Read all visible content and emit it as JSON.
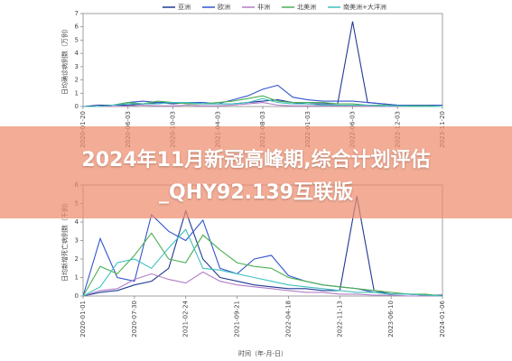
{
  "banner": {
    "title": "2024年11月新冠高峰期,综合计划评估_QHY92.139互联版"
  },
  "chart_data": [
    {
      "type": "line",
      "y_label": "日均确诊病例数（万例）",
      "categories": [
        "2020-01-20",
        null,
        null,
        "2020-06-03",
        null,
        null,
        "2020-10-03",
        null,
        null,
        "2021-04-03",
        null,
        null,
        "2021-08-03",
        null,
        null,
        "2022-01-03",
        null,
        null,
        "2022-06-03",
        null,
        null,
        "2022-12-03",
        null,
        null,
        "2023-11-20"
      ],
      "ylim": [
        0,
        7
      ],
      "yticks": [
        0,
        1,
        2,
        3,
        4,
        5,
        6,
        7
      ],
      "series": [
        {
          "name": "亚洲",
          "color": "#1f3a93",
          "values": [
            0,
            0.1,
            0.1,
            0.1,
            0.2,
            0.3,
            0.2,
            0.3,
            0.2,
            0.2,
            0.2,
            0.3,
            0.4,
            0.5,
            0.3,
            0.2,
            0.2,
            0.2,
            6.4,
            0.3,
            0.2,
            0.1,
            0.1,
            0.1,
            0.1
          ]
        },
        {
          "name": "欧洲",
          "color": "#3355cc",
          "values": [
            0,
            0,
            0.1,
            0.3,
            0.4,
            0.3,
            0.3,
            0.3,
            0.3,
            0.2,
            0.5,
            0.8,
            1.3,
            1.6,
            0.7,
            0.5,
            0.4,
            0.4,
            0.4,
            0.3,
            0.2,
            0.1,
            0.1,
            0.1,
            0.1
          ]
        },
        {
          "name": "非洲",
          "color": "#b07cc6",
          "values": [
            0,
            0,
            0,
            0.05,
            0.1,
            0.05,
            0.05,
            0.1,
            0.05,
            0.05,
            0.1,
            0.2,
            0.3,
            0.1,
            0.05,
            0.05,
            0.05,
            0.05,
            0.05,
            0.05,
            0,
            0,
            0,
            0,
            0
          ]
        },
        {
          "name": "北美洲",
          "color": "#4caf50",
          "values": [
            0,
            0,
            0.1,
            0.3,
            0.2,
            0.4,
            0.3,
            0.2,
            0.2,
            0.3,
            0.4,
            0.6,
            0.8,
            0.4,
            0.3,
            0.3,
            0.3,
            0.2,
            0.2,
            0.1,
            0.1,
            0.05,
            0.05,
            0.05,
            0
          ]
        },
        {
          "name": "南美洲+大洋洲",
          "color": "#40c0c0",
          "values": [
            0,
            0,
            0.1,
            0.2,
            0.2,
            0.2,
            0.3,
            0.3,
            0.2,
            0.2,
            0.2,
            0.3,
            0.6,
            0.3,
            0.2,
            0.2,
            0.1,
            0.1,
            0.1,
            0.1,
            0.05,
            0.05,
            0,
            0,
            0
          ]
        }
      ]
    },
    {
      "type": "line",
      "y_label": "日均新增死亡病例数（千例）",
      "x_label": "时间（年-月-日）",
      "categories": [
        "2020-01-01",
        null,
        null,
        "2020-07-30",
        null,
        null,
        "2021-02-24",
        null,
        null,
        "2021-09-21",
        null,
        null,
        "2022-04-18",
        null,
        null,
        "2022-11-13",
        null,
        null,
        "2023-06-10",
        null,
        null,
        "2024-01-06"
      ],
      "ylim": [
        0,
        6
      ],
      "yticks": [
        0,
        1,
        2,
        3,
        4,
        5,
        6
      ],
      "series": [
        {
          "color": "#1f3a93",
          "values": [
            0,
            0.2,
            0.3,
            0.6,
            0.8,
            1.5,
            4.6,
            2.0,
            1.0,
            0.8,
            0.6,
            0.5,
            0.4,
            0.4,
            0.3,
            0.3,
            5.4,
            0.3,
            0.1,
            0.1,
            0.05,
            0.05
          ]
        },
        {
          "color": "#3355cc",
          "values": [
            0,
            3.1,
            1.0,
            0.8,
            4.4,
            3.5,
            3.0,
            4.1,
            1.5,
            1.2,
            2.0,
            2.2,
            1.1,
            0.8,
            0.6,
            0.5,
            0.4,
            0.2,
            0.1,
            0.1,
            0.05,
            0
          ]
        },
        {
          "color": "#b07cc6",
          "values": [
            0,
            0.3,
            0.4,
            0.9,
            1.2,
            0.9,
            0.7,
            1.3,
            0.8,
            0.6,
            0.5,
            0.4,
            0.3,
            0.2,
            0.2,
            0.1,
            0.1,
            0.05,
            0.05,
            0,
            0,
            0
          ]
        },
        {
          "color": "#4caf50",
          "values": [
            0,
            1.6,
            1.2,
            2.2,
            3.4,
            2.0,
            1.8,
            3.3,
            2.5,
            1.8,
            1.6,
            1.5,
            1.0,
            0.8,
            0.6,
            0.5,
            0.4,
            0.3,
            0.2,
            0.1,
            0.1,
            0
          ]
        },
        {
          "color": "#40c0c0",
          "values": [
            0,
            0.5,
            1.8,
            2.0,
            1.5,
            2.6,
            3.6,
            1.5,
            1.4,
            1.2,
            1.0,
            0.8,
            0.6,
            0.5,
            0.4,
            0.3,
            0.2,
            0.2,
            0.1,
            0.1,
            0.05,
            0
          ]
        }
      ]
    }
  ]
}
